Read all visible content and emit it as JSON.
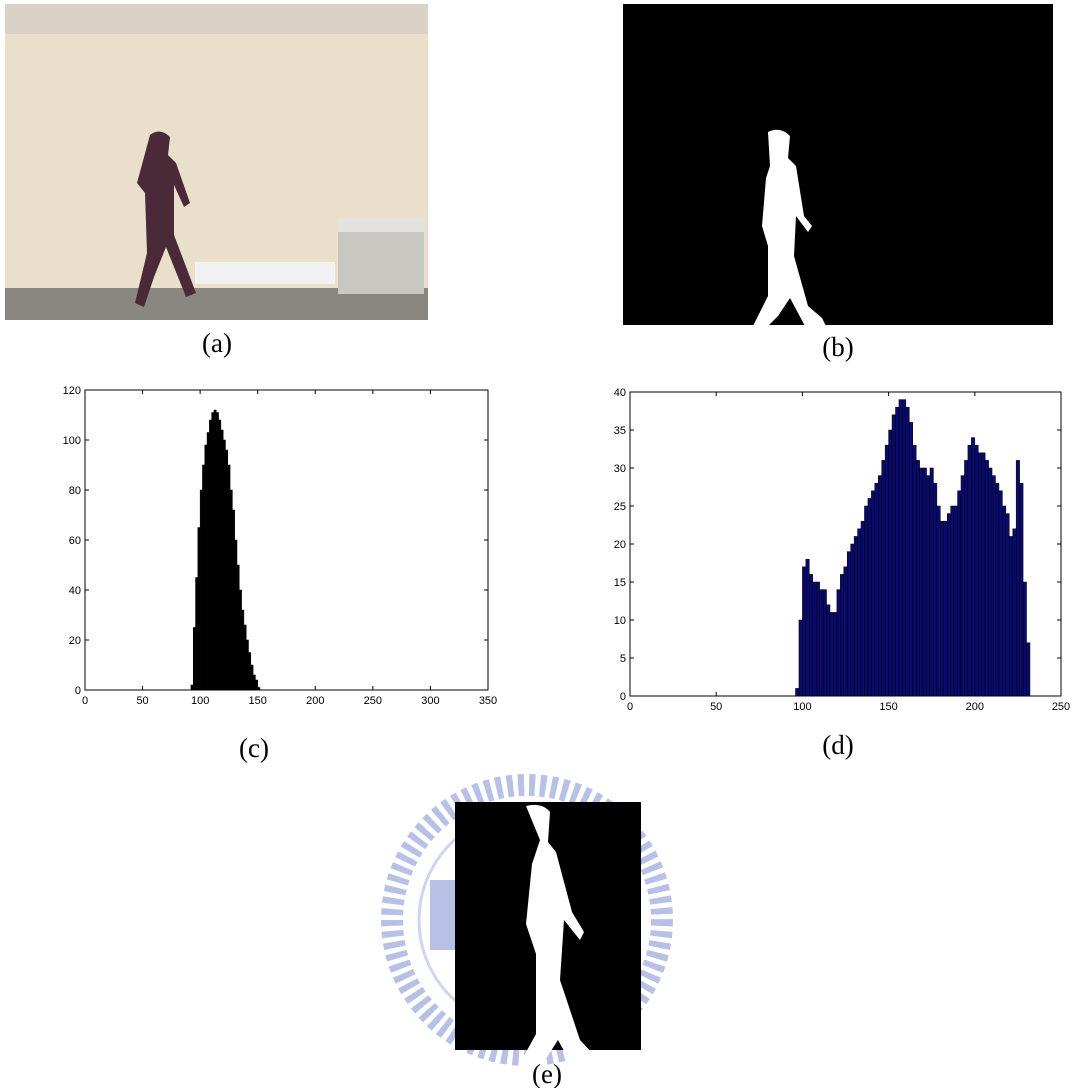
{
  "panels": {
    "a": "(a)",
    "b": "(b)",
    "c": "(c)",
    "d": "(d)",
    "e": "(e)"
  },
  "chart_data": [
    {
      "type": "histogram",
      "color": "#000000",
      "bins": [
        92,
        94,
        96,
        98,
        100,
        102,
        104,
        106,
        108,
        110,
        112,
        114,
        116,
        118,
        120,
        122,
        124,
        126,
        128,
        130,
        132,
        134,
        136,
        138,
        140,
        142,
        144,
        146,
        148,
        150,
        152
      ],
      "counts": [
        2,
        25,
        45,
        65,
        80,
        90,
        98,
        103,
        108,
        111,
        112,
        111,
        108,
        104,
        100,
        96,
        90,
        80,
        72,
        60,
        50,
        40,
        32,
        26,
        20,
        15,
        10,
        6,
        4,
        1
      ],
      "xlim": [
        0,
        350
      ],
      "xticks": [
        0,
        50,
        100,
        150,
        200,
        250,
        300,
        350
      ],
      "ylim": [
        0,
        120
      ],
      "yticks": [
        0,
        20,
        40,
        60,
        80,
        100,
        120
      ]
    },
    {
      "type": "histogram",
      "color": "#0a0a6e",
      "bins": [
        96,
        98,
        100,
        102,
        104,
        106,
        108,
        110,
        112,
        114,
        116,
        118,
        120,
        122,
        124,
        126,
        128,
        130,
        132,
        134,
        136,
        138,
        140,
        142,
        144,
        146,
        148,
        150,
        152,
        154,
        156,
        158,
        160,
        162,
        164,
        166,
        168,
        170,
        172,
        174,
        176,
        178,
        180,
        182,
        184,
        186,
        188,
        190,
        192,
        194,
        196,
        198,
        200,
        202,
        204,
        206,
        208,
        210,
        212,
        214,
        216,
        218,
        220,
        222,
        224,
        226,
        228,
        230,
        232
      ],
      "counts": [
        1,
        10,
        17,
        18,
        16,
        15,
        15,
        14,
        14,
        12,
        11,
        11,
        14,
        16,
        17,
        19,
        20,
        21,
        22,
        23,
        25,
        26,
        27,
        28,
        29,
        31,
        33,
        35,
        37,
        38,
        39,
        39,
        38,
        36,
        33,
        31,
        30,
        30,
        29,
        30,
        28,
        25,
        23,
        23,
        24,
        25,
        25,
        27,
        29,
        31,
        33,
        34,
        33,
        32,
        32,
        31,
        30,
        29,
        28,
        27,
        25,
        24,
        21,
        22,
        31,
        28,
        15,
        7
      ],
      "xlim": [
        0,
        250
      ],
      "xticks": [
        0,
        50,
        100,
        150,
        200,
        250
      ],
      "ylim": [
        0,
        40
      ],
      "yticks": [
        0,
        5,
        10,
        15,
        20,
        25,
        30,
        35,
        40
      ]
    }
  ]
}
